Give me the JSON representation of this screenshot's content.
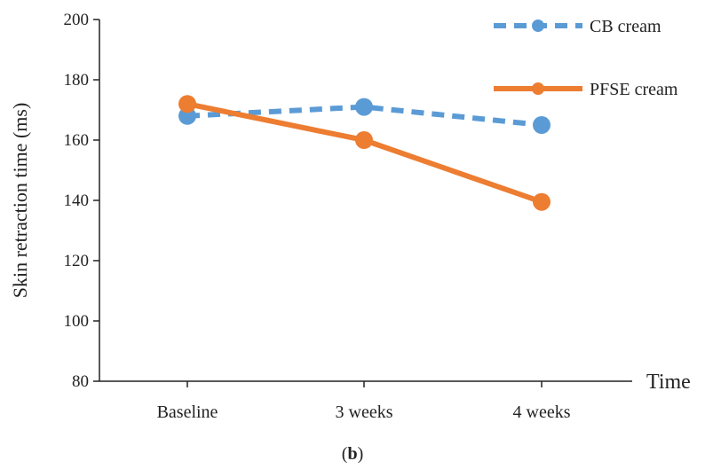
{
  "chart_data": {
    "type": "line",
    "categories": [
      "Baseline",
      "3 weeks",
      "4 weeks"
    ],
    "series": [
      {
        "name": "CB cream",
        "values": [
          168,
          171,
          165
        ],
        "color": "#5b9bd5",
        "line_style": "dashed"
      },
      {
        "name": "PFSE cream",
        "values": [
          172,
          160,
          139.5
        ],
        "color": "#ed7d31",
        "line_style": "solid"
      }
    ],
    "title": "",
    "xlabel": "Time",
    "ylabel": "Skin retraction time (ms)",
    "ylim": [
      80,
      200
    ],
    "yticks": [
      80,
      100,
      120,
      140,
      160,
      180,
      200
    ],
    "grid": false,
    "legend_position": "top-right"
  },
  "caption": {
    "open": "(",
    "letter": "b",
    "close": ")"
  }
}
